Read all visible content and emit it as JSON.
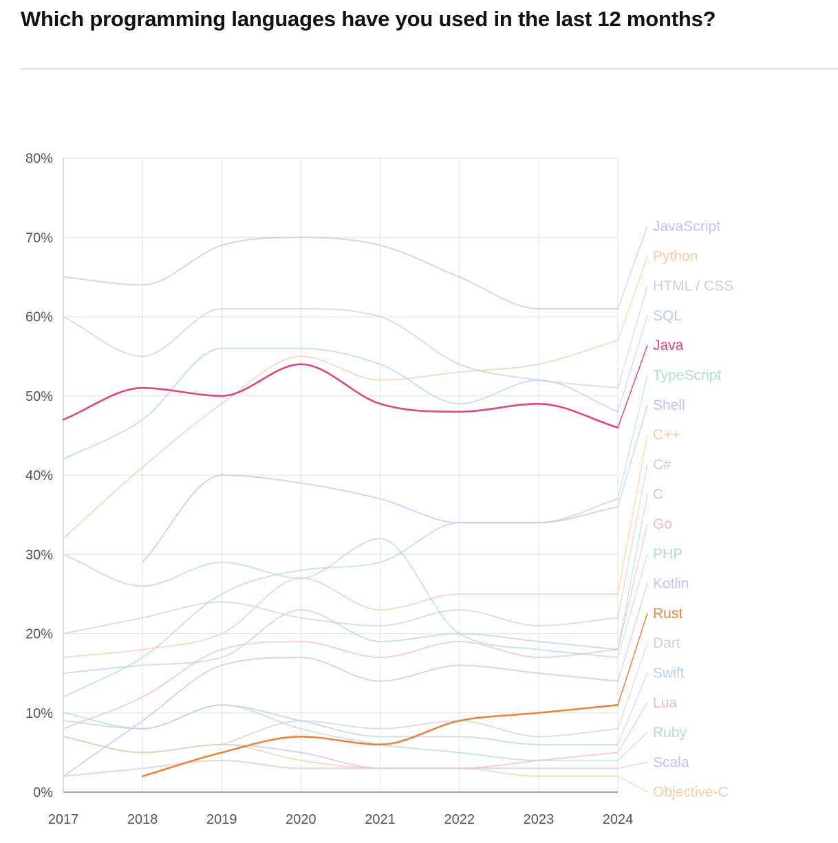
{
  "title": "Which programming languages have you used in the last 12 months?",
  "chart_data": {
    "type": "line",
    "title": "Which programming languages have you used in the last 12 months?",
    "x": [
      2017,
      2018,
      2019,
      2020,
      2021,
      2022,
      2023,
      2024
    ],
    "y_ticks": [
      "0%",
      "10%",
      "20%",
      "30%",
      "40%",
      "50%",
      "60%",
      "70%",
      "80%"
    ],
    "ylim": [
      0,
      80
    ],
    "xlabel": "",
    "ylabel": "",
    "grid": true,
    "legend_position": "right",
    "highlighted": [
      "Java",
      "Rust"
    ],
    "series": [
      {
        "name": "JavaScript",
        "color": "#c6bff0",
        "values": [
          65,
          64,
          69,
          70,
          69,
          65,
          61,
          61
        ]
      },
      {
        "name": "Python",
        "color": "#f8cba6",
        "values": [
          32,
          41,
          49,
          55,
          52,
          53,
          54,
          57
        ]
      },
      {
        "name": "HTML / CSS",
        "color": "#cfcfcf",
        "values": [
          60,
          55,
          61,
          61,
          60,
          54,
          52,
          51
        ]
      },
      {
        "name": "SQL",
        "color": "#b9cdf0",
        "values": [
          42,
          47,
          56,
          56,
          54,
          49,
          52,
          48
        ]
      },
      {
        "name": "Java",
        "color": "#e0457f",
        "values": [
          47,
          51,
          50,
          54,
          49,
          48,
          49,
          46
        ]
      },
      {
        "name": "TypeScript",
        "color": "#b3dccb",
        "values": [
          12,
          17,
          25,
          28,
          29,
          34,
          34,
          37
        ]
      },
      {
        "name": "Shell",
        "color": "#c6bff0",
        "values": [
          null,
          29,
          40,
          39,
          37,
          34,
          34,
          36
        ]
      },
      {
        "name": "C++",
        "color": "#f8cba6",
        "values": [
          17,
          18,
          20,
          27,
          23,
          25,
          25,
          25
        ]
      },
      {
        "name": "C#",
        "color": "#cfcfcf",
        "values": [
          20,
          22,
          24,
          22,
          21,
          23,
          21,
          22
        ]
      },
      {
        "name": "C",
        "color": "#b9cdf0",
        "values": [
          15,
          16,
          17,
          23,
          19,
          20,
          19,
          18
        ]
      },
      {
        "name": "Go",
        "color": "#f3b6cf",
        "values": [
          8,
          12,
          18,
          19,
          17,
          19,
          17,
          18
        ]
      },
      {
        "name": "PHP",
        "color": "#b3dccb",
        "values": [
          30,
          26,
          29,
          27,
          32,
          20,
          18,
          17
        ]
      },
      {
        "name": "Kotlin",
        "color": "#c6bff0",
        "values": [
          2,
          9,
          16,
          17,
          14,
          16,
          15,
          14
        ]
      },
      {
        "name": "Rust",
        "color": "#e8843a",
        "values": [
          null,
          2,
          5,
          7,
          6,
          9,
          10,
          11
        ]
      },
      {
        "name": "Dart",
        "color": "#cfcfcf",
        "values": [
          null,
          null,
          6,
          9,
          8,
          9,
          7,
          8
        ]
      },
      {
        "name": "Swift",
        "color": "#b9cdf0",
        "values": [
          9,
          8,
          11,
          9,
          7,
          7,
          6,
          6
        ]
      },
      {
        "name": "Lua",
        "color": "#f3b6cf",
        "values": [
          2,
          3,
          4,
          3,
          3,
          3,
          4,
          5
        ]
      },
      {
        "name": "Ruby",
        "color": "#b3dccb",
        "values": [
          10,
          8,
          11,
          8,
          6,
          5,
          4,
          4
        ]
      },
      {
        "name": "Scala",
        "color": "#c6bff0",
        "values": [
          7,
          5,
          6,
          5,
          3,
          3,
          3,
          3
        ]
      },
      {
        "name": "Objective-C",
        "color": "#f8cba6",
        "values": [
          7,
          5,
          6,
          4,
          3,
          3,
          2,
          2
        ]
      }
    ]
  }
}
